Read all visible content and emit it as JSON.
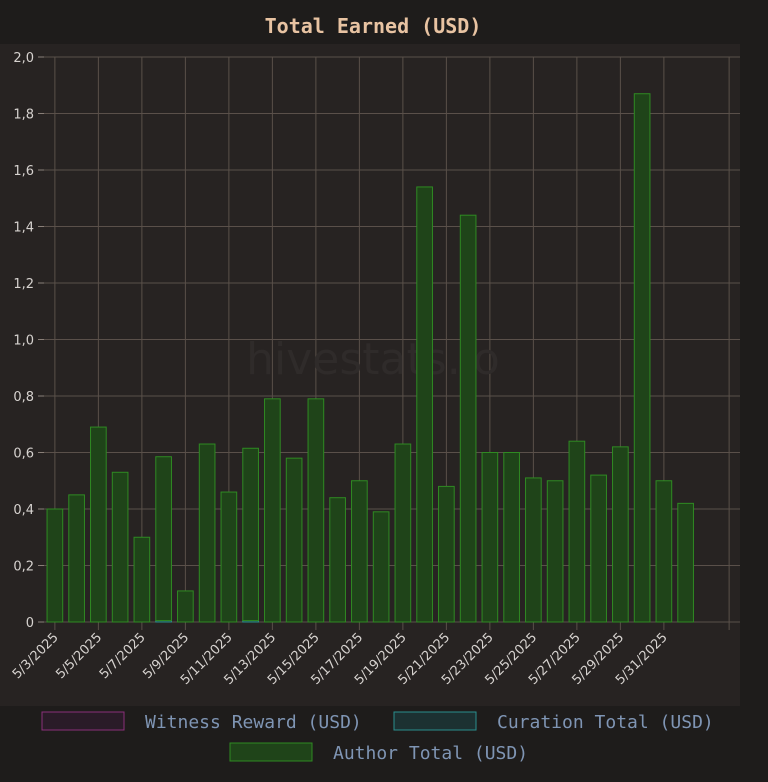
{
  "chart_data": {
    "type": "bar",
    "title": "Total Earned (USD)",
    "watermark": "hivestats.io",
    "ylim": [
      0,
      2.0
    ],
    "y_ticks": [
      "0",
      "0,2",
      "0,4",
      "0,6",
      "0,8",
      "1,0",
      "1,2",
      "1,4",
      "1,6",
      "1,8",
      "2,0"
    ],
    "x_tick_labels": [
      "5/3/2025",
      "5/5/2025",
      "5/7/2025",
      "5/9/2025",
      "5/11/2025",
      "5/13/2025",
      "5/15/2025",
      "5/17/2025",
      "5/19/2025",
      "5/21/2025",
      "5/23/2025",
      "5/25/2025",
      "5/27/2025",
      "5/29/2025",
      "5/31/2025"
    ],
    "categories": [
      "5/3/2025",
      "5/4/2025",
      "5/5/2025",
      "5/6/2025",
      "5/7/2025",
      "5/8/2025",
      "5/9/2025",
      "5/10/2025",
      "5/11/2025",
      "5/12/2025",
      "5/13/2025",
      "5/14/2025",
      "5/15/2025",
      "5/16/2025",
      "5/17/2025",
      "5/18/2025",
      "5/19/2025",
      "5/20/2025",
      "5/21/2025",
      "5/22/2025",
      "5/23/2025",
      "5/24/2025",
      "5/25/2025",
      "5/26/2025",
      "5/27/2025",
      "5/28/2025",
      "5/29/2025",
      "5/30/2025",
      "5/31/2025",
      "6/1/2025",
      "6/2/2025",
      "6/3/2025"
    ],
    "series": [
      {
        "name": "Witness Reward (USD)",
        "color": "#8b2f7a",
        "fill": "#2a1b28",
        "values": [
          0,
          0,
          0,
          0,
          0,
          0,
          0,
          0,
          0,
          0,
          0,
          0,
          0,
          0,
          0,
          0,
          0,
          0,
          0,
          0,
          0,
          0,
          0,
          0,
          0,
          0,
          0,
          0,
          0,
          0,
          0,
          0
        ]
      },
      {
        "name": "Curation Total (USD)",
        "color": "#2a8e8e",
        "fill": "#1c3132",
        "values": [
          0,
          0,
          0,
          0,
          0,
          0.005,
          0,
          0,
          0,
          0.005,
          0,
          0,
          0,
          0,
          0,
          0,
          0,
          0,
          0,
          0,
          0,
          0,
          0,
          0,
          0,
          0,
          0,
          0,
          0,
          0,
          0,
          0
        ]
      },
      {
        "name": "Author Total (USD)",
        "color": "#2f8a22",
        "fill": "#1f4419",
        "values": [
          0.4,
          0.45,
          0.69,
          0.53,
          0.3,
          0.58,
          0.11,
          0.63,
          0.46,
          0.61,
          0.79,
          0.58,
          0.79,
          0.44,
          0.5,
          0.39,
          0.63,
          1.54,
          0.48,
          1.44,
          0.6,
          0.6,
          0.51,
          0.5,
          0.64,
          0.52,
          0.62,
          1.87,
          0.5,
          0.42,
          0,
          0
        ]
      }
    ],
    "grid": true,
    "legend_position": "bottom"
  }
}
